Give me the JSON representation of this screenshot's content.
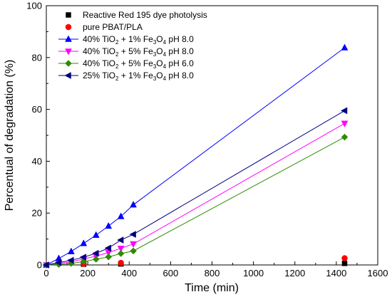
{
  "chart_data": {
    "type": "line",
    "xlabel": "Time (min)",
    "ylabel": "Percentual of degradation (%)",
    "xlim": [
      0,
      1600
    ],
    "ylim": [
      0,
      100
    ],
    "xticks": [
      0,
      200,
      400,
      600,
      800,
      1000,
      1200,
      1400,
      1600
    ],
    "yticks": [
      0,
      20,
      40,
      60,
      80,
      100
    ],
    "legend_position": "top-left",
    "series": [
      {
        "name": "Reactive Red 195 dye photolysis",
        "legend_parts": [
          {
            "t": "Reactive Red 195 dye photolysis",
            "sub": false
          }
        ],
        "marker": "square",
        "color": "#000000",
        "line": false,
        "x": [
          180,
          360,
          1440
        ],
        "y": [
          0.3,
          0.4,
          0.6
        ]
      },
      {
        "name": "pure PBAT/PLA",
        "legend_parts": [
          {
            "t": "pure PBAT/PLA",
            "sub": false
          }
        ],
        "marker": "circle",
        "color": "#ff0000",
        "line": false,
        "x": [
          180,
          360,
          1440
        ],
        "y": [
          0.5,
          0.8,
          2.6
        ]
      },
      {
        "name": "40% TiO2 + 1% Fe3O4 pH 8.0",
        "legend_parts": [
          {
            "t": "40% TiO",
            "sub": false
          },
          {
            "t": "2",
            "sub": true
          },
          {
            "t": " + 1% Fe",
            "sub": false
          },
          {
            "t": "3",
            "sub": true
          },
          {
            "t": "O",
            "sub": false
          },
          {
            "t": "4",
            "sub": true
          },
          {
            "t": " pH 8.0",
            "sub": false
          }
        ],
        "marker": "triangle-up",
        "color": "#0000ff",
        "line": true,
        "x": [
          0,
          60,
          120,
          180,
          240,
          300,
          360,
          420,
          1440
        ],
        "y": [
          0,
          2.5,
          5.2,
          8.3,
          11.5,
          15.0,
          18.7,
          23.2,
          83.8
        ]
      },
      {
        "name": "40% TiO2 + 5% Fe3O4 pH 8.0",
        "legend_parts": [
          {
            "t": "40% TiO",
            "sub": false
          },
          {
            "t": "2",
            "sub": true
          },
          {
            "t": " + 5% Fe",
            "sub": false
          },
          {
            "t": "3",
            "sub": true
          },
          {
            "t": "O",
            "sub": false
          },
          {
            "t": "4",
            "sub": true
          },
          {
            "t": " pH 8.0",
            "sub": false
          }
        ],
        "marker": "triangle-down",
        "color": "#ff00ff",
        "line": true,
        "x": [
          0,
          60,
          120,
          180,
          240,
          300,
          360,
          420,
          1440
        ],
        "y": [
          0,
          0.6,
          1.2,
          2.3,
          3.4,
          4.8,
          6.4,
          8.1,
          54.6
        ]
      },
      {
        "name": "40% TiO2 + 5% Fe3O4 pH 6.0",
        "legend_parts": [
          {
            "t": "40% TiO",
            "sub": false
          },
          {
            "t": "2",
            "sub": true
          },
          {
            "t": " + 5% Fe",
            "sub": false
          },
          {
            "t": "3",
            "sub": true
          },
          {
            "t": "O",
            "sub": false
          },
          {
            "t": "4",
            "sub": true
          },
          {
            "t": " pH 6.0",
            "sub": false
          }
        ],
        "marker": "diamond",
        "color": "#2e8b00",
        "line": true,
        "x": [
          0,
          60,
          120,
          180,
          240,
          300,
          360,
          420,
          1440
        ],
        "y": [
          0,
          0.2,
          0.6,
          1.3,
          2.2,
          3.1,
          4.4,
          5.4,
          49.3
        ]
      },
      {
        "name": "25% TiO2 + 1% Fe3O4 pH 8.0",
        "legend_parts": [
          {
            "t": "25% TiO",
            "sub": false
          },
          {
            "t": "2",
            "sub": true
          },
          {
            "t": " + 1% Fe",
            "sub": false
          },
          {
            "t": "3",
            "sub": true
          },
          {
            "t": "O",
            "sub": false
          },
          {
            "t": "4",
            "sub": true
          },
          {
            "t": " pH 8.0",
            "sub": false
          }
        ],
        "marker": "triangle-left",
        "color": "#000080",
        "line": true,
        "x": [
          0,
          60,
          120,
          180,
          240,
          300,
          360,
          420,
          1440
        ],
        "y": [
          0,
          0.9,
          1.8,
          3.0,
          4.5,
          6.5,
          9.6,
          11.8,
          59.5
        ]
      }
    ]
  }
}
